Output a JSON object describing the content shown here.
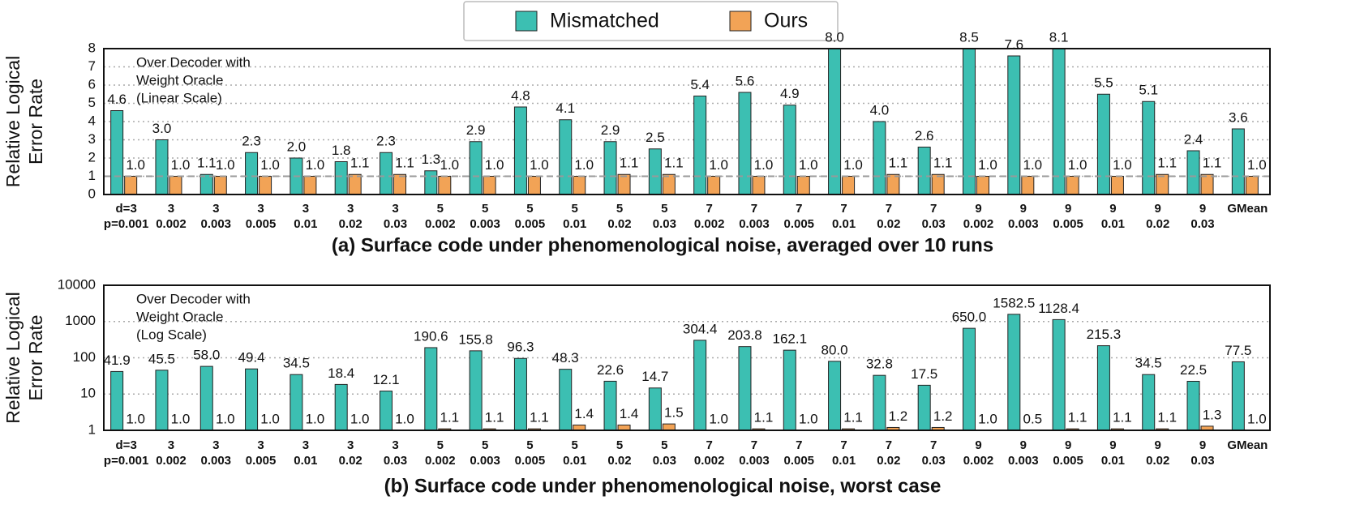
{
  "legend": {
    "names": [
      "Mismatched",
      "Ours"
    ]
  },
  "chart_data": [
    {
      "type": "bar",
      "title": "(a) Surface code under phenomenological noise, averaged over 10 runs",
      "ylabel": [
        "Relative Logical",
        "Error Rate"
      ],
      "annotation": [
        "Over Decoder with",
        "Weight Oracle",
        "(Linear Scale)"
      ],
      "categories": [
        [
          "d=3",
          "p=0.001"
        ],
        [
          "3",
          "0.002"
        ],
        [
          "3",
          "0.003"
        ],
        [
          "3",
          "0.005"
        ],
        [
          "3",
          "0.01"
        ],
        [
          "3",
          "0.02"
        ],
        [
          "3",
          "0.03"
        ],
        [
          "5",
          "0.002"
        ],
        [
          "5",
          "0.003"
        ],
        [
          "5",
          "0.005"
        ],
        [
          "5",
          "0.01"
        ],
        [
          "5",
          "0.02"
        ],
        [
          "5",
          "0.03"
        ],
        [
          "7",
          "0.002"
        ],
        [
          "7",
          "0.003"
        ],
        [
          "7",
          "0.005"
        ],
        [
          "7",
          "0.01"
        ],
        [
          "7",
          "0.02"
        ],
        [
          "7",
          "0.03"
        ],
        [
          "9",
          "0.002"
        ],
        [
          "9",
          "0.003"
        ],
        [
          "9",
          "0.005"
        ],
        [
          "9",
          "0.01"
        ],
        [
          "9",
          "0.02"
        ],
        [
          "9",
          "0.03"
        ],
        [
          "GMean"
        ]
      ],
      "series": [
        {
          "color": "#3cbfb2",
          "values": [
            4.6,
            3.0,
            1.1,
            2.3,
            2.0,
            1.8,
            2.3,
            1.3,
            2.9,
            4.8,
            4.1,
            2.9,
            2.5,
            5.4,
            5.6,
            4.9,
            8.0,
            4.0,
            2.6,
            8.5,
            7.6,
            8.1,
            5.5,
            5.1,
            2.4,
            3.6
          ],
          "value_labels": [
            "4.6",
            "3.0",
            "1.1",
            "2.3",
            "2.0",
            "1.8",
            "2.3",
            "1.3",
            "2.9",
            "4.8",
            "4.1",
            "2.9",
            "2.5",
            "5.4",
            "5.6",
            "4.9",
            "8.0",
            "4.0",
            "2.6",
            "8.5",
            "7.6",
            "8.1",
            "5.5",
            "5.1",
            "2.4",
            "3.6"
          ]
        },
        {
          "color": "#f2a356",
          "values": [
            1.0,
            1.0,
            1.0,
            1.0,
            1.0,
            1.1,
            1.1,
            1.0,
            1.0,
            1.0,
            1.0,
            1.1,
            1.1,
            1.0,
            1.0,
            1.0,
            1.0,
            1.1,
            1.1,
            1.0,
            1.0,
            1.0,
            1.0,
            1.1,
            1.1,
            1.0
          ],
          "value_labels": [
            "1.0",
            "1.0",
            "1.0",
            "1.0",
            "1.0",
            "1.1",
            "1.1",
            "1.0",
            "1.0",
            "1.0",
            "1.0",
            "1.1",
            "1.1",
            "1.0",
            "1.0",
            "1.0",
            "1.0",
            "1.1",
            "1.1",
            "1.0",
            "1.0",
            "1.0",
            "1.0",
            "1.1",
            "1.1",
            "1.0"
          ]
        }
      ],
      "ylim": [
        0,
        8
      ],
      "yticks": [
        0,
        1,
        2,
        3,
        4,
        5,
        6,
        7,
        8
      ],
      "grid": true,
      "reference_line": 1
    },
    {
      "type": "bar",
      "log_scale": true,
      "title": "(b) Surface code under phenomenological noise, worst case",
      "ylabel": [
        "Relative Logical",
        "Error Rate"
      ],
      "annotation": [
        "Over Decoder with",
        "Weight Oracle",
        "(Log Scale)"
      ],
      "categories": [
        [
          "d=3",
          "p=0.001"
        ],
        [
          "3",
          "0.002"
        ],
        [
          "3",
          "0.003"
        ],
        [
          "3",
          "0.005"
        ],
        [
          "3",
          "0.01"
        ],
        [
          "3",
          "0.02"
        ],
        [
          "3",
          "0.03"
        ],
        [
          "5",
          "0.002"
        ],
        [
          "5",
          "0.003"
        ],
        [
          "5",
          "0.005"
        ],
        [
          "5",
          "0.01"
        ],
        [
          "5",
          "0.02"
        ],
        [
          "5",
          "0.03"
        ],
        [
          "7",
          "0.002"
        ],
        [
          "7",
          "0.003"
        ],
        [
          "7",
          "0.005"
        ],
        [
          "7",
          "0.01"
        ],
        [
          "7",
          "0.02"
        ],
        [
          "7",
          "0.03"
        ],
        [
          "9",
          "0.002"
        ],
        [
          "9",
          "0.003"
        ],
        [
          "9",
          "0.005"
        ],
        [
          "9",
          "0.01"
        ],
        [
          "9",
          "0.02"
        ],
        [
          "9",
          "0.03"
        ],
        [
          "GMean"
        ]
      ],
      "series": [
        {
          "color": "#3cbfb2",
          "values": [
            41.9,
            45.5,
            58.0,
            49.4,
            34.5,
            18.4,
            12.1,
            190.6,
            155.8,
            96.3,
            48.3,
            22.6,
            14.7,
            304.4,
            203.8,
            162.1,
            80.0,
            32.8,
            17.5,
            650.0,
            1582.5,
            1128.4,
            215.3,
            34.5,
            22.5,
            77.5
          ],
          "value_labels": [
            "41.9",
            "45.5",
            "58.0",
            "49.4",
            "34.5",
            "18.4",
            "12.1",
            "190.6",
            "155.8",
            "96.3",
            "48.3",
            "22.6",
            "14.7",
            "304.4",
            "203.8",
            "162.1",
            "80.0",
            "32.8",
            "17.5",
            "650.0",
            "1582.5",
            "1128.4",
            "215.3",
            "34.5",
            "22.5",
            "77.5"
          ]
        },
        {
          "color": "#f2a356",
          "values": [
            1.0,
            1.0,
            1.0,
            1.0,
            1.0,
            1.0,
            1.0,
            1.1,
            1.1,
            1.1,
            1.4,
            1.4,
            1.5,
            1.0,
            1.1,
            1.0,
            1.1,
            1.2,
            1.2,
            1.0,
            0.5,
            1.1,
            1.1,
            1.1,
            1.3,
            1.0
          ],
          "value_labels": [
            "1.0",
            "1.0",
            "1.0",
            "1.0",
            "1.0",
            "1.0",
            "1.0",
            "1.1",
            "1.1",
            "1.1",
            "1.4",
            "1.4",
            "1.5",
            "1.0",
            "1.1",
            "1.0",
            "1.1",
            "1.2",
            "1.2",
            "1.0",
            "0.5",
            "1.1",
            "1.1",
            "1.1",
            "1.3",
            "1.0"
          ]
        }
      ],
      "ylim": [
        1,
        10000
      ],
      "yticks": [
        1,
        10,
        100,
        1000,
        10000
      ],
      "grid": true
    }
  ]
}
